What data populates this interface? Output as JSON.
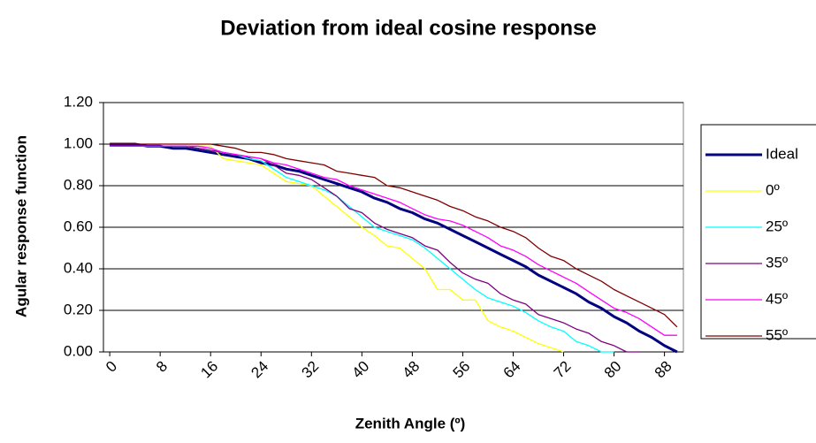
{
  "chart_data": {
    "type": "line",
    "title": "Deviation from ideal cosine response",
    "x_label": "Zenith Angle (º)",
    "y_label": "Agular response function",
    "x": [
      0,
      2,
      4,
      6,
      8,
      10,
      12,
      14,
      16,
      18,
      20,
      22,
      24,
      26,
      28,
      30,
      32,
      34,
      36,
      38,
      40,
      42,
      44,
      46,
      48,
      50,
      52,
      54,
      56,
      58,
      60,
      62,
      64,
      66,
      68,
      70,
      72,
      74,
      76,
      78,
      80,
      82,
      84,
      86,
      88,
      90
    ],
    "xlim": [
      -1,
      91
    ],
    "xticks": [
      0,
      8,
      16,
      24,
      32,
      40,
      48,
      56,
      64,
      72,
      80,
      88
    ],
    "ylim": [
      0,
      1.2
    ],
    "yticks": [
      {
        "value": 0,
        "label": "0.00"
      },
      {
        "value": 0.2,
        "label": "0.20"
      },
      {
        "value": 0.4,
        "label": "0.40"
      },
      {
        "value": 0.6,
        "label": "0.60"
      },
      {
        "value": 0.8,
        "label": "0.80"
      },
      {
        "value": 1.0,
        "label": "1.00"
      },
      {
        "value": 1.2,
        "label": "1.20"
      }
    ],
    "grid": true,
    "legend": "right",
    "series": [
      {
        "name": "Ideal",
        "color": "#000080",
        "values": [
          1.0,
          1.0,
          1.0,
          0.99,
          0.99,
          0.98,
          0.98,
          0.97,
          0.96,
          0.95,
          0.94,
          0.93,
          0.91,
          0.9,
          0.88,
          0.87,
          0.85,
          0.83,
          0.81,
          0.79,
          0.77,
          0.74,
          0.72,
          0.69,
          0.67,
          0.64,
          0.62,
          0.59,
          0.56,
          0.53,
          0.5,
          0.47,
          0.44,
          0.41,
          0.37,
          0.34,
          0.31,
          0.28,
          0.24,
          0.21,
          0.17,
          0.14,
          0.1,
          0.07,
          0.03,
          0.0
        ]
      },
      {
        "name": "0º",
        "color": "#ffff00",
        "values": [
          0.99,
          0.99,
          0.99,
          0.99,
          0.99,
          0.99,
          0.99,
          0.99,
          0.99,
          0.93,
          0.92,
          0.91,
          0.9,
          0.86,
          0.82,
          0.81,
          0.8,
          0.75,
          0.7,
          0.65,
          0.6,
          0.56,
          0.51,
          0.5,
          0.45,
          0.4,
          0.3,
          0.3,
          0.25,
          0.25,
          0.15,
          0.12,
          0.1,
          0.07,
          0.04,
          0.02,
          0.0,
          null,
          null,
          null,
          null,
          null,
          null,
          null,
          null,
          null
        ]
      },
      {
        "name": "25º",
        "color": "#00ffff",
        "values": [
          0.99,
          0.99,
          0.99,
          0.99,
          0.99,
          0.99,
          0.99,
          0.98,
          0.97,
          0.96,
          0.95,
          0.93,
          0.92,
          0.88,
          0.84,
          0.82,
          0.8,
          0.78,
          0.75,
          0.7,
          0.65,
          0.6,
          0.58,
          0.56,
          0.54,
          0.5,
          0.45,
          0.4,
          0.35,
          0.3,
          0.26,
          0.24,
          0.22,
          0.19,
          0.15,
          0.12,
          0.1,
          0.05,
          0.03,
          0.0,
          0.0,
          null,
          null,
          null,
          null,
          null
        ]
      },
      {
        "name": "35º",
        "color": "#800080",
        "values": [
          0.99,
          0.99,
          0.99,
          0.99,
          0.99,
          0.99,
          0.99,
          0.98,
          0.97,
          0.96,
          0.95,
          0.94,
          0.93,
          0.9,
          0.86,
          0.85,
          0.83,
          0.79,
          0.75,
          0.69,
          0.67,
          0.62,
          0.59,
          0.57,
          0.55,
          0.51,
          0.49,
          0.43,
          0.38,
          0.35,
          0.33,
          0.28,
          0.25,
          0.23,
          0.18,
          0.16,
          0.14,
          0.11,
          0.09,
          0.05,
          0.03,
          0.0,
          0.0,
          null,
          null,
          null
        ]
      },
      {
        "name": "45º",
        "color": "#ff00ff",
        "values": [
          0.99,
          0.99,
          0.99,
          0.99,
          0.99,
          0.99,
          0.99,
          0.99,
          0.98,
          0.96,
          0.95,
          0.94,
          0.93,
          0.91,
          0.9,
          0.88,
          0.86,
          0.84,
          0.83,
          0.8,
          0.78,
          0.76,
          0.74,
          0.72,
          0.69,
          0.66,
          0.64,
          0.63,
          0.61,
          0.58,
          0.55,
          0.51,
          0.49,
          0.46,
          0.42,
          0.39,
          0.36,
          0.33,
          0.29,
          0.25,
          0.21,
          0.19,
          0.16,
          0.12,
          0.08,
          0.08
        ]
      },
      {
        "name": "55º",
        "color": "#800000",
        "values": [
          1.0,
          1.0,
          1.0,
          1.0,
          1.0,
          1.0,
          1.0,
          1.0,
          1.0,
          0.99,
          0.98,
          0.96,
          0.96,
          0.95,
          0.93,
          0.92,
          0.91,
          0.9,
          0.87,
          0.86,
          0.85,
          0.84,
          0.8,
          0.79,
          0.77,
          0.75,
          0.73,
          0.7,
          0.68,
          0.65,
          0.63,
          0.6,
          0.58,
          0.55,
          0.5,
          0.46,
          0.44,
          0.4,
          0.37,
          0.34,
          0.3,
          0.27,
          0.24,
          0.21,
          0.18,
          0.12
        ]
      }
    ]
  }
}
